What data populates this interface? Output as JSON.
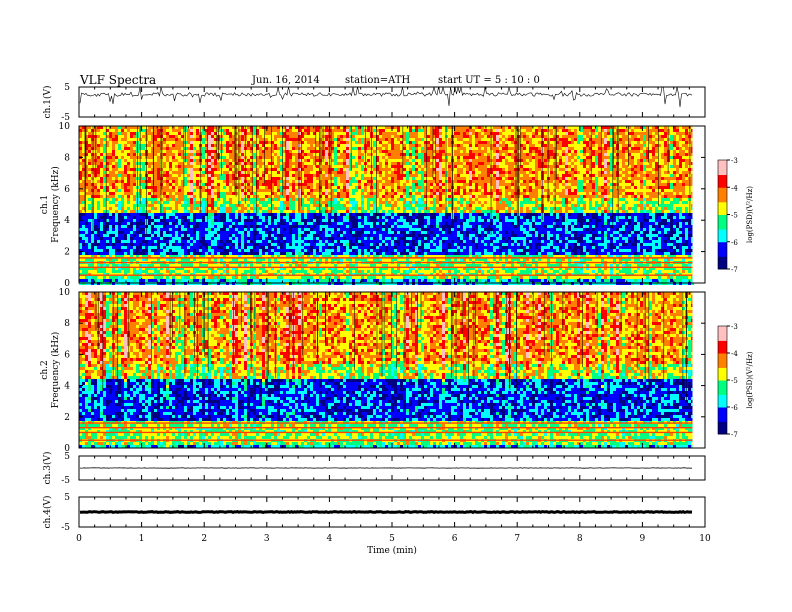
{
  "header": {
    "title": "VLF  Spectra",
    "date": "Jun. 16, 2014",
    "station": "station=ATH",
    "start": "start  UT  =   5  : 10 : 0"
  },
  "chart_data": {
    "type": "heatmap",
    "xlabel": "Time  (min)",
    "xlim": [
      0,
      10
    ],
    "x_ticks": [
      "0",
      "1",
      "2",
      "3",
      "4",
      "5",
      "6",
      "7",
      "8",
      "9",
      "10"
    ],
    "data_end_min": 9.8,
    "waveform_panels": [
      {
        "id": "ch1",
        "label": "ch.1(V)",
        "ylim": [
          -5,
          5
        ],
        "tick_labels": [
          "5",
          "-5"
        ],
        "signal": "noisy baseline near +2.5 V with frequent impulsive spikes (sferics)"
      },
      {
        "id": "ch3",
        "label": "ch.3(V)",
        "ylim": [
          -5,
          5
        ],
        "tick_labels": [
          "5",
          "-5"
        ],
        "signal": "flat trace near 0 V"
      },
      {
        "id": "ch4",
        "label": "ch.4(V)",
        "ylim": [
          -5,
          5
        ],
        "tick_labels": [
          "5",
          "-5"
        ],
        "signal": "thick flat trace near 0 V"
      }
    ],
    "spectrogram_panels": [
      {
        "id": "ch1",
        "label": "ch.1",
        "ylabel": "Frequency  (kHz)",
        "ylim": [
          0,
          10
        ],
        "y_ticks": [
          "0",
          "2",
          "4",
          "6",
          "8",
          "10"
        ]
      },
      {
        "id": "ch2",
        "label": "ch.2",
        "ylabel": "Frequency  (kHz)",
        "ylim": [
          0,
          10
        ],
        "y_ticks": [
          "0",
          "2",
          "4",
          "6",
          "8",
          "10"
        ]
      }
    ],
    "colorbar": {
      "label": "log(PSD)(V²/Hz)",
      "range": [
        -7,
        -3
      ],
      "tick_labels": [
        "-3",
        "-4",
        "-5",
        "-6",
        "-7"
      ],
      "colors": [
        "#000080",
        "#0000ff",
        "#00ffff",
        "#00ff80",
        "#ffff00",
        "#ff8000",
        "#ff0000",
        "#ffc0c0",
        "#ffffff"
      ]
    },
    "spectral_bands": [
      {
        "f_range": [
          0,
          0.3
        ],
        "logpsd": -5.8
      },
      {
        "f_range": [
          0.3,
          1.8
        ],
        "logpsd": -5.0
      },
      {
        "f_range": [
          1.8,
          4.5
        ],
        "logpsd": -6.2
      },
      {
        "f_range": [
          4.5,
          5.5
        ],
        "logpsd": -4.8
      },
      {
        "f_range": [
          5.5,
          10
        ],
        "logpsd": -4.3
      }
    ]
  }
}
